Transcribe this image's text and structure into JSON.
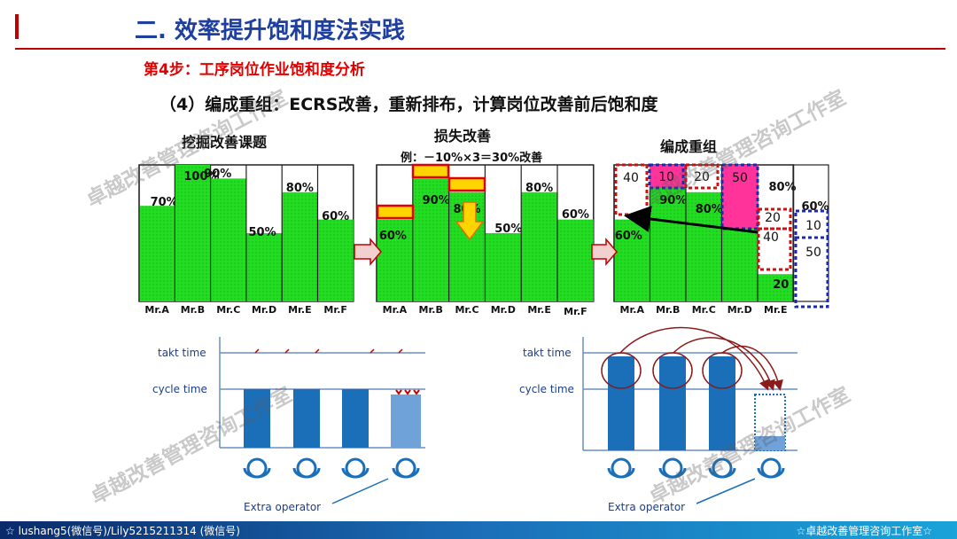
{
  "header": {
    "title": "二. 效率提升饱和度法实践"
  },
  "step_title": "第4步：工序岗位作业饱和度分析",
  "subtitle": "（4）编成重组：ECRS改善，重新排布，计算岗位改善前后饱和度",
  "panels": {
    "left_title": "挖掘改善课题",
    "middle_title": "损失改善",
    "middle_example": "例：－10%×3＝30%改善",
    "right_title": "编成重组"
  },
  "chart_data": [
    {
      "type": "bar",
      "title": "挖掘改善课题",
      "categories": [
        "Mr.A",
        "Mr.B",
        "Mr.C",
        "Mr.D",
        "Mr.E",
        "Mr.F"
      ],
      "values": [
        70,
        100,
        90,
        50,
        80,
        60
      ],
      "labels": [
        "70%",
        "100%",
        "90%",
        "50%",
        "80%",
        "60%"
      ],
      "ylim": [
        0,
        100
      ]
    },
    {
      "type": "bar",
      "title": "损失改善",
      "categories": [
        "Mr.A",
        "Mr.B",
        "Mr.C",
        "Mr.D",
        "Mr.E",
        "Mr.F"
      ],
      "values": [
        60,
        90,
        80,
        50,
        80,
        60
      ],
      "labels": [
        "60%",
        "90%",
        "80%",
        "50%",
        "80%",
        "60%"
      ],
      "loss_blocks": [
        10,
        10,
        10
      ],
      "ylim": [
        0,
        100
      ]
    },
    {
      "type": "bar",
      "title": "编成重组",
      "categories": [
        "Mr.A",
        "Mr.B",
        "Mr.C",
        "Mr.D",
        "Mr.E"
      ],
      "values": [
        60,
        90,
        80,
        70,
        20
      ],
      "labels": [
        "60%",
        "90%",
        "80%",
        "",
        "20"
      ],
      "overlay_labels": [
        "80%",
        "60%"
      ],
      "moved_blocks": [
        "40",
        "10",
        "20",
        "50",
        "20",
        "40",
        "10",
        "50"
      ],
      "ylim": [
        0,
        100
      ]
    }
  ],
  "lower": {
    "left": {
      "takt_label": "takt time",
      "cycle_label": "cycle time",
      "extra_label": "Extra operator"
    },
    "right": {
      "takt_label": "takt time",
      "cycle_label": "cycle time",
      "extra_label": "Extra operator"
    }
  },
  "colors": {
    "bar_green": "#22dd22",
    "title_blue": "#1f3f9f",
    "red": "#e00000",
    "op_blue": "#1b6fb8",
    "magenta": "#ff3399"
  },
  "watermark": "卓越改善管理咨询工作室",
  "footer": {
    "left": "☆ lushang5(微信号)/Lily5215211314 (微信号)",
    "right": "☆卓越改善管理咨询工作室☆"
  }
}
